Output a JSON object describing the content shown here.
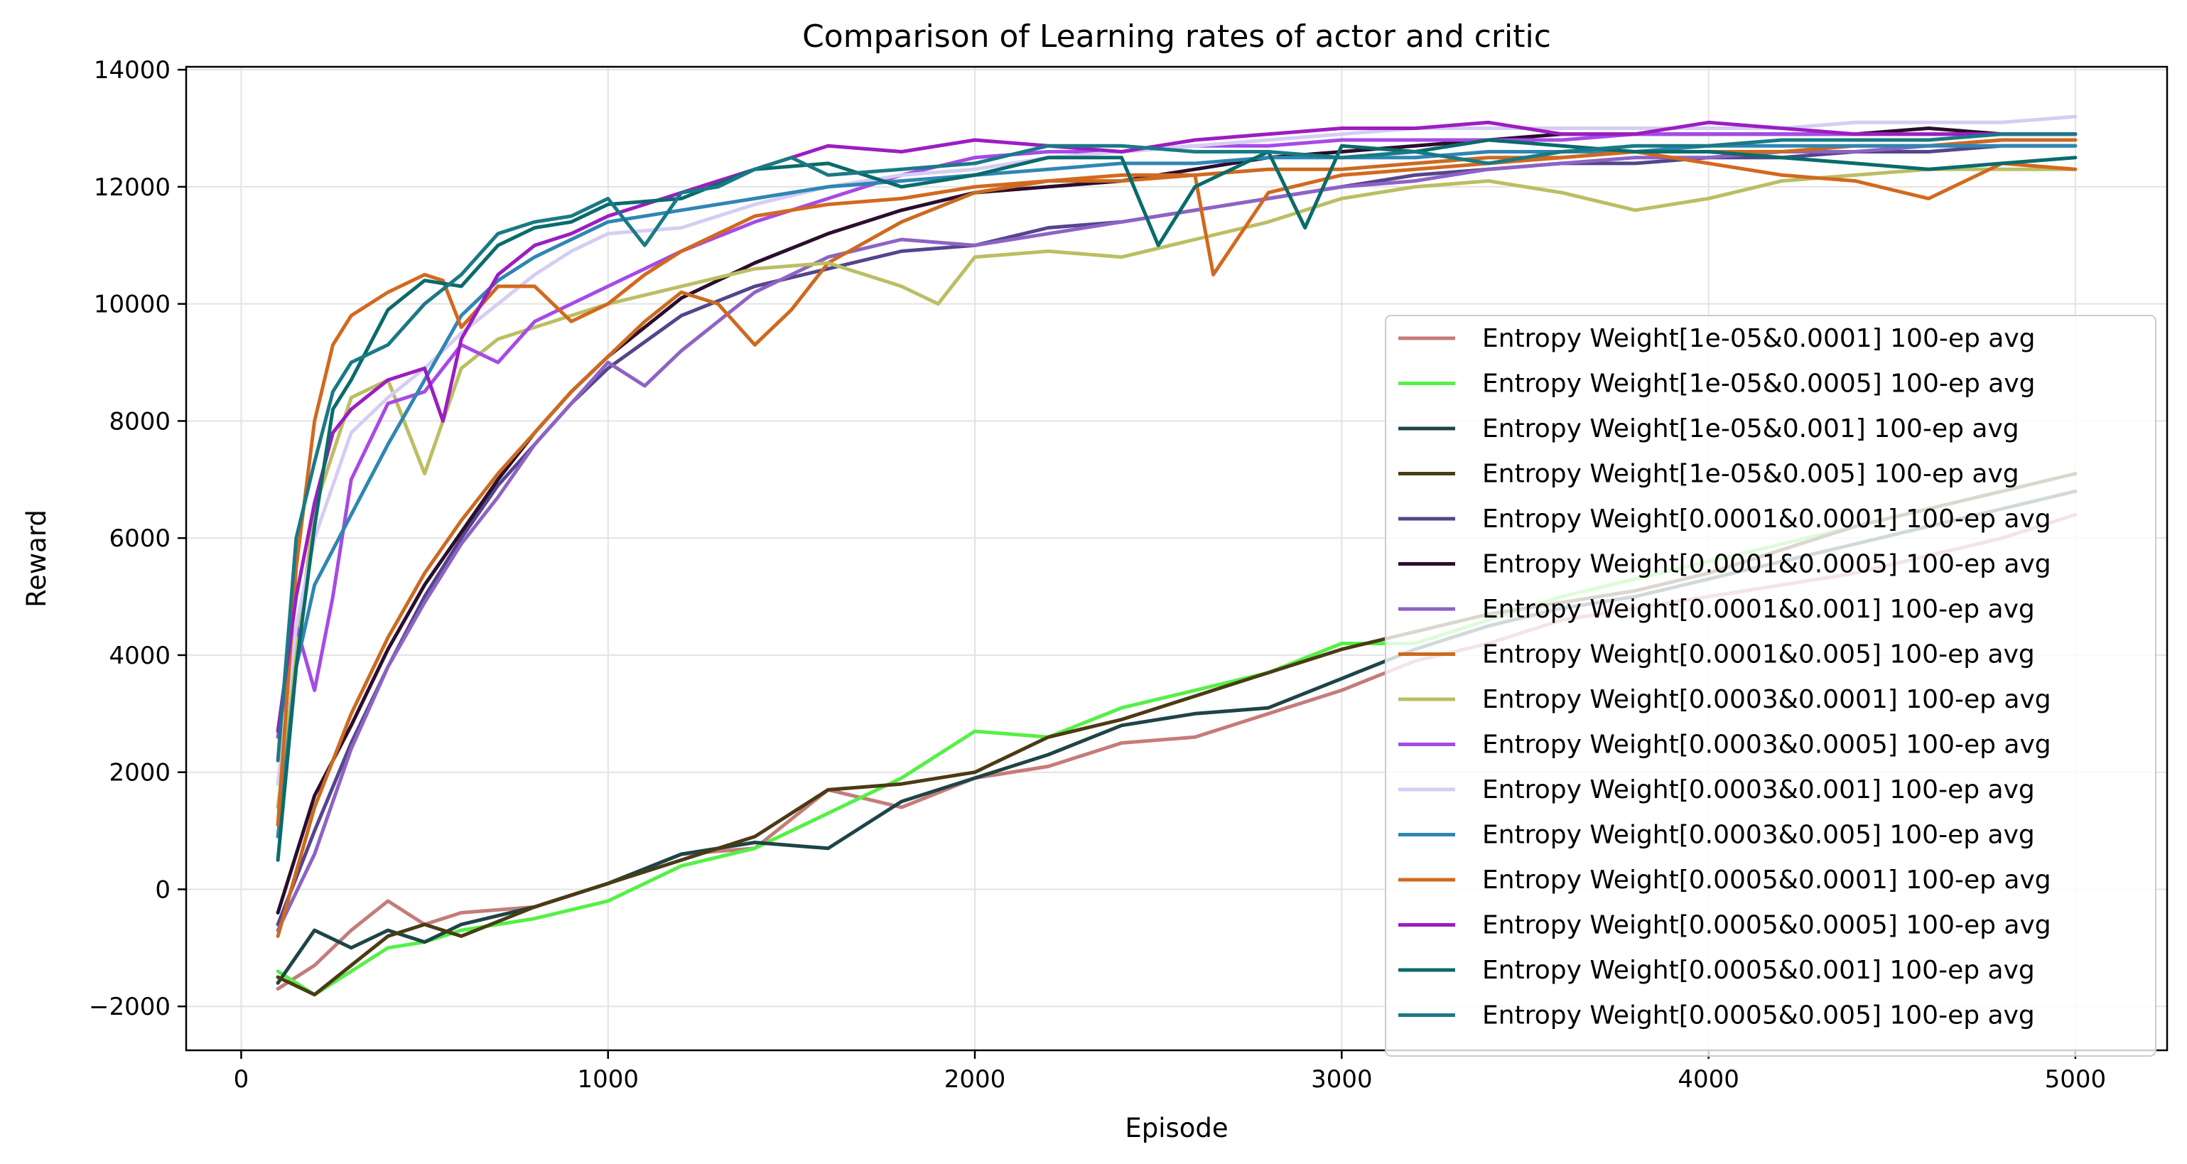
{
  "chart_data": {
    "type": "line",
    "title": "Comparison of Learning rates of actor and critic",
    "xlabel": "Episode",
    "ylabel": "Reward",
    "xlim": [
      -150,
      5250
    ],
    "ylim": [
      -2750,
      14050
    ],
    "xticks": [
      0,
      1000,
      2000,
      3000,
      4000,
      5000
    ],
    "xtick_labels": [
      "0",
      "1000",
      "2000",
      "3000",
      "4000",
      "5000"
    ],
    "yticks": [
      -2000,
      0,
      2000,
      4000,
      6000,
      8000,
      10000,
      12000,
      14000
    ],
    "ytick_labels": [
      "−2000",
      "0",
      "2000",
      "4000",
      "6000",
      "8000",
      "10000",
      "12000",
      "14000"
    ],
    "grid": true,
    "legend_position": "center-right",
    "series": [
      {
        "name": "Entropy Weight[1e-05&0.0001] 100-ep avg",
        "color": "#c47c7a",
        "x": [
          100,
          200,
          300,
          400,
          500,
          600,
          800,
          1000,
          1200,
          1400,
          1600,
          1800,
          2000,
          2200,
          2400,
          2600,
          2800,
          3000,
          3200,
          3400,
          3600,
          3800,
          4000,
          4200,
          4400,
          4600,
          4800,
          5000
        ],
        "y": [
          -1700,
          -1300,
          -700,
          -200,
          -600,
          -400,
          -300,
          100,
          600,
          700,
          1700,
          1400,
          1900,
          2100,
          2500,
          2600,
          3000,
          3400,
          3900,
          4200,
          4600,
          4800,
          5000,
          5200,
          5400,
          5700,
          6000,
          6400
        ]
      },
      {
        "name": "Entropy Weight[1e-05&0.0005] 100-ep avg",
        "color": "#55f046",
        "x": [
          100,
          200,
          300,
          400,
          500,
          600,
          800,
          1000,
          1200,
          1400,
          1600,
          1800,
          2000,
          2200,
          2400,
          2600,
          2800,
          3000,
          3200,
          3400,
          3600,
          3800,
          4000,
          4200,
          4400,
          4600,
          4800,
          5000
        ],
        "y": [
          -1400,
          -1800,
          -1400,
          -1000,
          -900,
          -700,
          -500,
          -200,
          400,
          700,
          1300,
          1900,
          2700,
          2600,
          3100,
          3400,
          3700,
          4200,
          4200,
          4600,
          5000,
          5300,
          5600,
          5900,
          6200,
          6500,
          6800,
          7100
        ]
      },
      {
        "name": "Entropy Weight[1e-05&0.001] 100-ep avg",
        "color": "#1e4446",
        "x": [
          100,
          200,
          300,
          400,
          500,
          600,
          800,
          1000,
          1200,
          1400,
          1600,
          1800,
          2000,
          2200,
          2400,
          2600,
          2800,
          3000,
          3200,
          3400,
          3600,
          3800,
          4000,
          4200,
          4400,
          4600,
          4800,
          5000
        ],
        "y": [
          -1600,
          -700,
          -1000,
          -700,
          -900,
          -600,
          -300,
          100,
          600,
          800,
          700,
          1500,
          1900,
          2300,
          2800,
          3000,
          3100,
          3600,
          4100,
          4500,
          4800,
          5000,
          5300,
          5600,
          5900,
          6200,
          6500,
          6800
        ]
      },
      {
        "name": "Entropy Weight[1e-05&0.005] 100-ep avg",
        "color": "#4a3b14",
        "x": [
          100,
          200,
          300,
          400,
          500,
          600,
          800,
          1000,
          1200,
          1400,
          1600,
          1800,
          2000,
          2200,
          2400,
          2600,
          2800,
          3000,
          3200,
          3400,
          3600,
          3800,
          4000,
          4200,
          4400,
          4600,
          4800,
          5000
        ],
        "y": [
          -1500,
          -1800,
          -1300,
          -800,
          -600,
          -800,
          -300,
          100,
          500,
          900,
          1700,
          1800,
          2000,
          2600,
          2900,
          3300,
          3700,
          4100,
          4400,
          4700,
          4900,
          5100,
          5400,
          5800,
          6200,
          6500,
          6800,
          7100
        ]
      },
      {
        "name": "Entropy Weight[0.0001&0.0001] 100-ep avg",
        "color": "#54458c",
        "x": [
          100,
          200,
          300,
          400,
          500,
          600,
          700,
          800,
          900,
          1000,
          1200,
          1400,
          1600,
          1800,
          2000,
          2200,
          2400,
          2600,
          2800,
          3000,
          3200,
          3400,
          3600,
          3800,
          4000,
          4200,
          4400,
          4600,
          4800,
          5000
        ],
        "y": [
          -600,
          1000,
          2500,
          3800,
          5000,
          6000,
          6900,
          7600,
          8300,
          8900,
          9800,
          10300,
          10600,
          10900,
          11000,
          11300,
          11400,
          11600,
          11800,
          12000,
          12200,
          12300,
          12400,
          12400,
          12500,
          12500,
          12600,
          12600,
          12700,
          12700
        ]
      },
      {
        "name": "Entropy Weight[0.0001&0.0005] 100-ep avg",
        "color": "#2b0d2e",
        "x": [
          100,
          200,
          300,
          400,
          500,
          600,
          700,
          800,
          900,
          1000,
          1200,
          1400,
          1600,
          1800,
          2000,
          2200,
          2400,
          2600,
          2800,
          3000,
          3200,
          3400,
          3600,
          3800,
          4000,
          4200,
          4400,
          4600,
          4800,
          5000
        ],
        "y": [
          -400,
          1600,
          2800,
          4100,
          5200,
          6100,
          7000,
          7800,
          8500,
          9100,
          10100,
          10700,
          11200,
          11600,
          11900,
          12000,
          12100,
          12300,
          12500,
          12600,
          12700,
          12800,
          12900,
          12900,
          12900,
          12900,
          12900,
          13000,
          12900,
          12900
        ]
      },
      {
        "name": "Entropy Weight[0.0001&0.001] 100-ep avg",
        "color": "#8d63c4",
        "x": [
          100,
          200,
          300,
          400,
          500,
          600,
          700,
          800,
          900,
          1000,
          1100,
          1200,
          1400,
          1600,
          1800,
          2000,
          2200,
          2400,
          2600,
          2800,
          3000,
          3200,
          3400,
          3600,
          3800,
          4000,
          4200,
          4400,
          4600,
          4800,
          5000
        ],
        "y": [
          -700,
          600,
          2400,
          3800,
          4900,
          5900,
          6700,
          7600,
          8300,
          9000,
          8600,
          9200,
          10200,
          10800,
          11100,
          11000,
          11200,
          11400,
          11600,
          11800,
          12000,
          12100,
          12300,
          12400,
          12500,
          12500,
          12600,
          12600,
          12700,
          12800,
          12800
        ]
      },
      {
        "name": "Entropy Weight[0.0001&0.005] 100-ep avg",
        "color": "#cc6a1f",
        "x": [
          100,
          200,
          300,
          400,
          500,
          600,
          700,
          800,
          900,
          1000,
          1100,
          1200,
          1300,
          1400,
          1500,
          1600,
          1800,
          2000,
          2200,
          2400,
          2600,
          2800,
          3000,
          3200,
          3400,
          3600,
          3800,
          4000,
          4200,
          4400,
          4600,
          4800,
          5000
        ],
        "y": [
          -800,
          1400,
          3000,
          4300,
          5400,
          6300,
          7100,
          7800,
          8500,
          9100,
          9700,
          10200,
          10000,
          9300,
          9900,
          10700,
          11400,
          11900,
          12100,
          12100,
          12200,
          12300,
          12300,
          12400,
          12500,
          12500,
          12600,
          12600,
          12600,
          12700,
          12700,
          12800,
          12800
        ]
      },
      {
        "name": "Entropy Weight[0.0003&0.0001] 100-ep avg",
        "color": "#bbbe62",
        "x": [
          100,
          150,
          200,
          300,
          400,
          500,
          600,
          700,
          800,
          1000,
          1200,
          1400,
          1600,
          1800,
          1900,
          2000,
          2200,
          2400,
          2600,
          2800,
          3000,
          3200,
          3400,
          3600,
          3800,
          4000,
          4200,
          4400,
          4600,
          4800,
          5000
        ],
        "y": [
          1400,
          4000,
          6500,
          8400,
          8700,
          7100,
          8900,
          9400,
          9600,
          10000,
          10300,
          10600,
          10700,
          10300,
          10000,
          10800,
          10900,
          10800,
          11100,
          11400,
          11800,
          12000,
          12100,
          11900,
          11600,
          11800,
          12100,
          12200,
          12300,
          12300,
          12300
        ]
      },
      {
        "name": "Entropy Weight[0.0003&0.0005] 100-ep avg",
        "color": "#a64ae7",
        "x": [
          100,
          150,
          200,
          250,
          300,
          400,
          500,
          600,
          700,
          800,
          900,
          1000,
          1200,
          1400,
          1600,
          1800,
          2000,
          2200,
          2400,
          2600,
          2800,
          3000,
          3200,
          3400,
          3600,
          3800,
          4000,
          4200,
          4400,
          4600,
          4800,
          5000
        ],
        "y": [
          2600,
          4500,
          3400,
          5000,
          7000,
          8300,
          8500,
          9300,
          9000,
          9700,
          10000,
          10300,
          10900,
          11400,
          11800,
          12200,
          12500,
          12600,
          12600,
          12700,
          12700,
          12800,
          12800,
          12800,
          12800,
          12900,
          12900,
          12900,
          12900,
          12900,
          12900,
          12900
        ]
      },
      {
        "name": "Entropy Weight[0.0003&0.001] 100-ep avg",
        "color": "#d5cdf2",
        "x": [
          100,
          150,
          200,
          300,
          400,
          500,
          600,
          700,
          800,
          900,
          1000,
          1200,
          1400,
          1600,
          1800,
          2000,
          2200,
          2400,
          2600,
          2800,
          3000,
          3200,
          3400,
          3600,
          3800,
          4000,
          4200,
          4400,
          4600,
          4800,
          5000
        ],
        "y": [
          1800,
          4500,
          6000,
          7800,
          8400,
          8900,
          9500,
          10000,
          10500,
          10900,
          11200,
          11300,
          11700,
          12000,
          12200,
          12300,
          12500,
          12600,
          12700,
          12800,
          12900,
          13000,
          13000,
          13000,
          13000,
          13000,
          13000,
          13100,
          13100,
          13100,
          13200
        ]
      },
      {
        "name": "Entropy Weight[0.0003&0.005] 100-ep avg",
        "color": "#2f86b3",
        "x": [
          100,
          150,
          200,
          300,
          400,
          500,
          600,
          700,
          800,
          1000,
          1200,
          1400,
          1600,
          1800,
          2000,
          2200,
          2400,
          2600,
          2800,
          3000,
          3200,
          3400,
          3600,
          3800,
          4000,
          4200,
          4400,
          4600,
          4800,
          5000
        ],
        "y": [
          900,
          3800,
          5200,
          6400,
          7600,
          8700,
          9800,
          10400,
          10800,
          11400,
          11600,
          11800,
          12000,
          12100,
          12200,
          12300,
          12400,
          12400,
          12500,
          12500,
          12500,
          12600,
          12600,
          12600,
          12700,
          12700,
          12700,
          12700,
          12700,
          12700
        ]
      },
      {
        "name": "Entropy Weight[0.0005&0.0001] 100-ep avg",
        "color": "#d2691e",
        "x": [
          100,
          150,
          200,
          250,
          300,
          400,
          500,
          550,
          600,
          700,
          800,
          900,
          1000,
          1100,
          1200,
          1300,
          1400,
          1500,
          1600,
          1800,
          2000,
          2200,
          2400,
          2600,
          2650,
          2800,
          3000,
          3200,
          3400,
          3600,
          3800,
          4000,
          4200,
          4400,
          4600,
          4800,
          5000
        ],
        "y": [
          1100,
          5500,
          8000,
          9300,
          9800,
          10200,
          10500,
          10400,
          9600,
          10300,
          10300,
          9700,
          10000,
          10500,
          10900,
          11200,
          11500,
          11600,
          11700,
          11800,
          12000,
          12100,
          12200,
          12200,
          10500,
          11900,
          12200,
          12300,
          12400,
          12500,
          12600,
          12400,
          12200,
          12100,
          11800,
          12400,
          12300
        ]
      },
      {
        "name": "Entropy Weight[0.0005&0.0005] 100-ep avg",
        "color": "#9c1dc2",
        "x": [
          100,
          150,
          200,
          250,
          300,
          400,
          500,
          550,
          600,
          700,
          800,
          900,
          1000,
          1200,
          1400,
          1600,
          1800,
          2000,
          2200,
          2400,
          2600,
          2800,
          3000,
          3200,
          3400,
          3600,
          3800,
          4000,
          4200,
          4400,
          4600,
          4800,
          5000
        ],
        "y": [
          2700,
          5000,
          6600,
          7800,
          8200,
          8700,
          8900,
          8000,
          9400,
          10500,
          11000,
          11200,
          11500,
          11900,
          12300,
          12700,
          12600,
          12800,
          12700,
          12600,
          12800,
          12900,
          13000,
          13000,
          13100,
          12900,
          12900,
          13100,
          13000,
          12900,
          12900,
          12900,
          12900
        ]
      },
      {
        "name": "Entropy Weight[0.0005&0.001] 100-ep avg",
        "color": "#0a6b6b",
        "x": [
          100,
          150,
          200,
          250,
          300,
          400,
          500,
          600,
          700,
          800,
          900,
          1000,
          1200,
          1400,
          1600,
          1800,
          2000,
          2200,
          2400,
          2500,
          2600,
          2800,
          2900,
          3000,
          3200,
          3400,
          3600,
          3800,
          4000,
          4200,
          4400,
          4600,
          4800,
          5000
        ],
        "y": [
          500,
          3800,
          6200,
          8200,
          8700,
          9900,
          10400,
          10300,
          11000,
          11300,
          11400,
          11700,
          11800,
          12300,
          12400,
          12000,
          12200,
          12500,
          12500,
          11000,
          12000,
          12600,
          11300,
          12700,
          12600,
          12800,
          12700,
          12600,
          12600,
          12500,
          12400,
          12300,
          12400,
          12500
        ]
      },
      {
        "name": "Entropy Weight[0.0005&0.005] 100-ep avg",
        "color": "#197a85",
        "x": [
          100,
          150,
          200,
          250,
          300,
          400,
          500,
          600,
          700,
          800,
          900,
          1000,
          1100,
          1200,
          1300,
          1400,
          1500,
          1600,
          1800,
          2000,
          2200,
          2400,
          2600,
          2800,
          3000,
          3200,
          3400,
          3600,
          3800,
          4000,
          4200,
          4400,
          4600,
          4800,
          5000
        ],
        "y": [
          2200,
          6000,
          7300,
          8500,
          9000,
          9300,
          10000,
          10500,
          11200,
          11400,
          11500,
          11800,
          11000,
          11900,
          12000,
          12300,
          12500,
          12200,
          12300,
          12400,
          12700,
          12700,
          12600,
          12600,
          12500,
          12600,
          12400,
          12600,
          12700,
          12700,
          12800,
          12800,
          12800,
          12900,
          12900
        ]
      }
    ]
  }
}
